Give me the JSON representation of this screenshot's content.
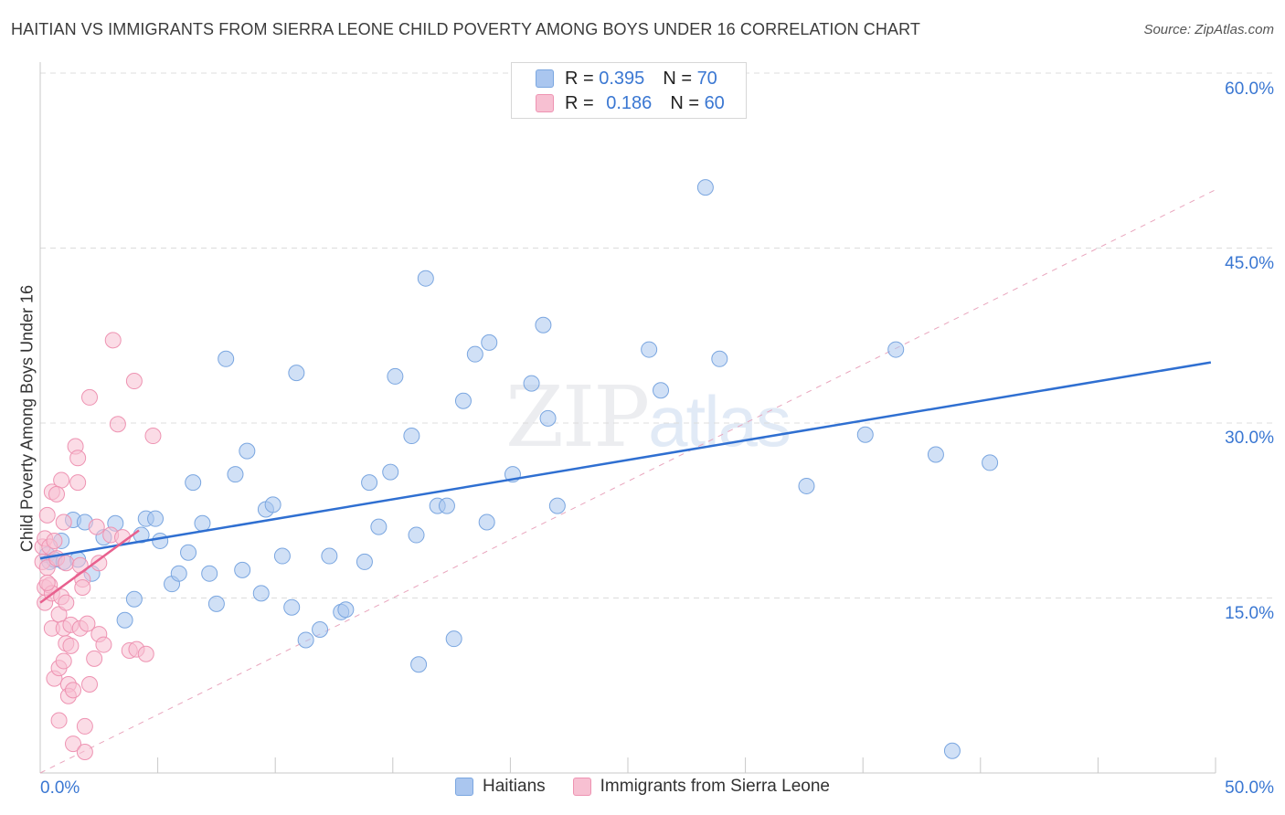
{
  "title": "HAITIAN VS IMMIGRANTS FROM SIERRA LEONE CHILD POVERTY AMONG BOYS UNDER 16 CORRELATION CHART",
  "source": "Source: ZipAtlas.com",
  "watermark": {
    "zip": "ZIP",
    "atlas": "atlas"
  },
  "legend": {
    "haitians": {
      "r_label": "R =",
      "r_value": "0.395",
      "n_label": "N =",
      "n_value": "70"
    },
    "sierra": {
      "r_label": "R =",
      "r_value": "0.186",
      "n_label": "N =",
      "n_value": "60"
    }
  },
  "colors": {
    "blue_fill": "#aac6ef",
    "blue_stroke": "#7aa6e0",
    "blue_line": "#2f6fd1",
    "pink_fill": "#f7c0d2",
    "pink_stroke": "#ee93b2",
    "pink_line": "#e8608e",
    "grid": "#dcdcdc",
    "tick_text": "#3a77d2"
  },
  "chart_data": {
    "type": "scatter",
    "title": "HAITIAN VS IMMIGRANTS FROM SIERRA LEONE CHILD POVERTY AMONG BOYS UNDER 16 CORRELATION CHART",
    "xlabel": "",
    "ylabel": "Child Poverty Among Boys Under 16",
    "xlim": [
      0,
      50
    ],
    "ylim": [
      0,
      60
    ],
    "x_tick_labels": [
      "0.0%",
      "50.0%"
    ],
    "y_ticks": [
      15,
      30,
      45,
      60
    ],
    "y_tick_labels": [
      "15.0%",
      "30.0%",
      "45.0%",
      "60.0%"
    ],
    "legend_position": "top-center",
    "series": [
      {
        "name": "Haitians",
        "color": "#aac6ef",
        "r": 0.395,
        "n": 70,
        "trend": {
          "x0": 0.0,
          "y0": 18.4,
          "x1": 49.8,
          "y1": 35.2
        },
        "points": [
          [
            0.3,
            18.7
          ],
          [
            0.4,
            18.1
          ],
          [
            0.6,
            18.3
          ],
          [
            0.9,
            19.9
          ],
          [
            1.0,
            18.1
          ],
          [
            1.4,
            21.7
          ],
          [
            1.9,
            21.5
          ],
          [
            2.2,
            17.1
          ],
          [
            2.7,
            20.2
          ],
          [
            3.2,
            21.4
          ],
          [
            3.6,
            13.1
          ],
          [
            4.0,
            14.9
          ],
          [
            4.3,
            20.4
          ],
          [
            4.5,
            21.8
          ],
          [
            4.9,
            21.8
          ],
          [
            5.1,
            19.9
          ],
          [
            5.6,
            16.2
          ],
          [
            5.9,
            17.1
          ],
          [
            6.3,
            18.9
          ],
          [
            6.5,
            24.9
          ],
          [
            6.9,
            21.4
          ],
          [
            7.2,
            17.1
          ],
          [
            7.5,
            14.5
          ],
          [
            7.9,
            35.5
          ],
          [
            8.3,
            25.6
          ],
          [
            8.6,
            17.4
          ],
          [
            8.8,
            27.6
          ],
          [
            9.4,
            15.4
          ],
          [
            9.6,
            22.6
          ],
          [
            9.9,
            23.0
          ],
          [
            10.3,
            18.6
          ],
          [
            10.7,
            14.2
          ],
          [
            10.9,
            34.3
          ],
          [
            11.3,
            11.4
          ],
          [
            11.9,
            12.3
          ],
          [
            12.3,
            18.6
          ],
          [
            12.8,
            13.8
          ],
          [
            13.0,
            14.0
          ],
          [
            13.8,
            18.1
          ],
          [
            14.0,
            24.9
          ],
          [
            14.4,
            21.1
          ],
          [
            14.9,
            25.8
          ],
          [
            15.1,
            34.0
          ],
          [
            15.8,
            28.9
          ],
          [
            16.0,
            20.4
          ],
          [
            16.1,
            9.3
          ],
          [
            16.4,
            42.4
          ],
          [
            16.9,
            22.9
          ],
          [
            17.3,
            22.9
          ],
          [
            17.6,
            11.5
          ],
          [
            18.0,
            31.9
          ],
          [
            18.5,
            35.9
          ],
          [
            19.0,
            21.5
          ],
          [
            19.1,
            36.9
          ],
          [
            20.1,
            25.6
          ],
          [
            20.9,
            33.4
          ],
          [
            21.4,
            38.4
          ],
          [
            21.6,
            30.4
          ],
          [
            22.0,
            22.9
          ],
          [
            25.9,
            36.3
          ],
          [
            26.4,
            32.8
          ],
          [
            28.3,
            50.2
          ],
          [
            28.9,
            35.5
          ],
          [
            32.6,
            24.6
          ],
          [
            35.1,
            29.0
          ],
          [
            36.4,
            36.3
          ],
          [
            38.1,
            27.3
          ],
          [
            38.8,
            1.9
          ],
          [
            40.4,
            26.6
          ],
          [
            1.6,
            18.3
          ]
        ]
      },
      {
        "name": "Immigrants from Sierra Leone",
        "color": "#f7c0d2",
        "r": 0.186,
        "n": 60,
        "trend": {
          "x0": 0.0,
          "y0": 14.6,
          "x1": 4.2,
          "y1": 20.8
        },
        "points": [
          [
            0.1,
            19.4
          ],
          [
            0.1,
            18.1
          ],
          [
            0.2,
            20.1
          ],
          [
            0.2,
            15.9
          ],
          [
            0.2,
            14.6
          ],
          [
            0.3,
            22.1
          ],
          [
            0.3,
            17.6
          ],
          [
            0.4,
            19.4
          ],
          [
            0.4,
            16.1
          ],
          [
            0.5,
            24.1
          ],
          [
            0.5,
            15.4
          ],
          [
            0.5,
            12.4
          ],
          [
            0.6,
            8.1
          ],
          [
            0.6,
            19.9
          ],
          [
            0.7,
            18.4
          ],
          [
            0.8,
            13.6
          ],
          [
            0.8,
            9.0
          ],
          [
            0.8,
            4.5
          ],
          [
            0.9,
            25.1
          ],
          [
            0.9,
            15.1
          ],
          [
            1.0,
            12.4
          ],
          [
            1.0,
            9.6
          ],
          [
            1.0,
            21.5
          ],
          [
            1.1,
            18.0
          ],
          [
            1.1,
            14.6
          ],
          [
            1.1,
            11.1
          ],
          [
            1.2,
            7.6
          ],
          [
            1.2,
            6.6
          ],
          [
            1.3,
            10.9
          ],
          [
            1.3,
            12.7
          ],
          [
            1.4,
            2.5
          ],
          [
            1.4,
            7.1
          ],
          [
            1.5,
            28.0
          ],
          [
            1.6,
            27.0
          ],
          [
            1.6,
            24.9
          ],
          [
            1.7,
            17.8
          ],
          [
            1.7,
            12.4
          ],
          [
            1.8,
            16.6
          ],
          [
            1.8,
            15.9
          ],
          [
            1.9,
            4.0
          ],
          [
            1.9,
            1.8
          ],
          [
            2.0,
            12.8
          ],
          [
            2.1,
            7.6
          ],
          [
            2.1,
            32.2
          ],
          [
            2.3,
            9.8
          ],
          [
            2.4,
            21.1
          ],
          [
            2.5,
            18.0
          ],
          [
            2.5,
            11.9
          ],
          [
            2.7,
            11.0
          ],
          [
            3.0,
            20.4
          ],
          [
            3.1,
            37.1
          ],
          [
            3.3,
            29.9
          ],
          [
            3.5,
            20.2
          ],
          [
            3.8,
            10.5
          ],
          [
            4.0,
            33.6
          ],
          [
            4.1,
            10.6
          ],
          [
            4.5,
            10.2
          ],
          [
            4.8,
            28.9
          ],
          [
            0.7,
            23.9
          ],
          [
            0.3,
            16.3
          ]
        ]
      }
    ]
  },
  "bottom_legend": {
    "haitians": "Haitians",
    "sierra": "Immigrants from Sierra Leone"
  }
}
